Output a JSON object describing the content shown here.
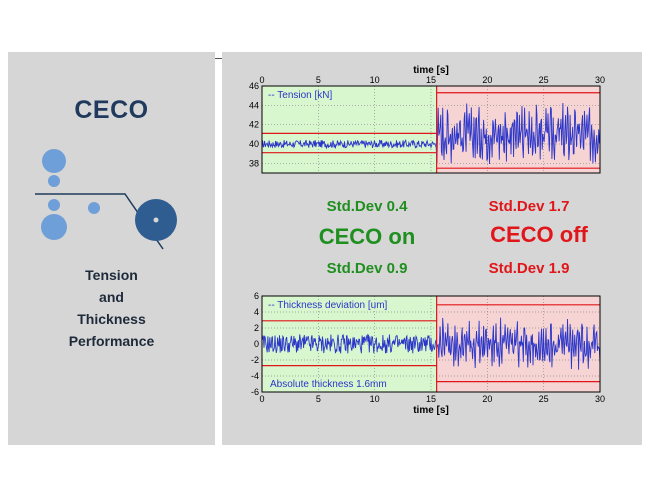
{
  "brand": {
    "title": "CECO"
  },
  "caption": {
    "line1": "Tension",
    "line2": "and",
    "line3": "Thickness",
    "line4": "Performance"
  },
  "stats": {
    "on_tension_std": "Std.Dev 0.4",
    "on_label": "CECO on",
    "on_thickness_std": "Std.Dev 0.9",
    "off_tension_std": "Std.Dev 1.7",
    "off_label": "CECO off",
    "off_thickness_std": "Std.Dev 1.9"
  },
  "colors": {
    "on_zone": "#d9f7cf",
    "off_zone": "#f7d4d4",
    "signal": "#2a35c9",
    "limit": "#e0161a",
    "switch_line": "#e0161a"
  },
  "chart_data": [
    {
      "type": "line",
      "name": "tension",
      "xlabel": "time [s]",
      "xlabel_position": "top",
      "legend": "-- Tension [kN]",
      "xlim": [
        0,
        30
      ],
      "ylim": [
        37,
        46
      ],
      "x_ticks": [
        0,
        5,
        10,
        15,
        20,
        25,
        30
      ],
      "y_ticks": [
        38,
        40,
        42,
        44,
        46
      ],
      "grid": true,
      "switch_time": 15.5,
      "on_zone": {
        "x_range": [
          0,
          15.5
        ],
        "y_limits": [
          39.1,
          41.1
        ],
        "center": 40,
        "amplitude": 0.4
      },
      "off_zone": {
        "x_range": [
          15.5,
          30
        ],
        "y_limits": [
          37.5,
          45.3
        ],
        "center": 41,
        "amplitude": 2.6
      }
    },
    {
      "type": "line",
      "name": "thickness",
      "xlabel": "time [s]",
      "xlabel_position": "bottom",
      "legend": "-- Thickness deviation [um]",
      "annotation": "Absolute thickness 1.6mm",
      "xlim": [
        0,
        30
      ],
      "ylim": [
        -6,
        6
      ],
      "x_ticks": [
        0,
        5,
        10,
        15,
        20,
        25,
        30
      ],
      "y_ticks": [
        -6,
        -4,
        -2,
        0,
        2,
        4,
        6
      ],
      "grid": true,
      "switch_time": 15.5,
      "on_zone": {
        "x_range": [
          0,
          15.5
        ],
        "y_limits": [
          -2.7,
          2.9
        ],
        "center": 0,
        "amplitude": 1.2
      },
      "off_zone": {
        "x_range": [
          15.5,
          30
        ],
        "y_limits": [
          -4.7,
          4.9
        ],
        "center": 0,
        "amplitude": 2.6
      }
    }
  ]
}
